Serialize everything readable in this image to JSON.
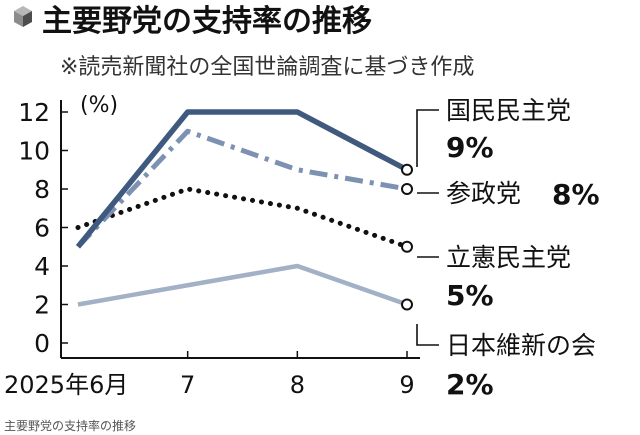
{
  "header": {
    "title": "主要野党の支持率の推移",
    "subtitle": "※読売新聞社の全国世論調査に基づき作成"
  },
  "caption": "主要野党の支持率の推移",
  "colors": {
    "navy": "#3f5a7e",
    "steel": "#7d92b2",
    "black": "#111111",
    "light": "#a3b1c6"
  },
  "chart_data": {
    "type": "line",
    "title": "主要野党の支持率の推移",
    "subtitle": "※読売新聞社の全国世論調査に基づき作成",
    "unit_label": "(%)",
    "categories": [
      "2025年6月",
      "7",
      "8",
      "9"
    ],
    "ylim": [
      0,
      12
    ],
    "yticks": [
      "0",
      "2",
      "4",
      "6",
      "8",
      "10",
      "12"
    ],
    "grid": false,
    "legend_placement": "right (labels at line ends)",
    "series": [
      {
        "name": "国民民主党",
        "label_value": "9%",
        "values": [
          5,
          12,
          12,
          9
        ],
        "color": "#3f5a7e",
        "style": "solid-thick"
      },
      {
        "name": "参政党",
        "label_value": "8%",
        "values": [
          5,
          11,
          9,
          8
        ],
        "color": "#7d92b2",
        "style": "dash-dot"
      },
      {
        "name": "立憲民主党",
        "label_value": "5%",
        "values": [
          6,
          8,
          7,
          5
        ],
        "color": "#111111",
        "style": "dotted"
      },
      {
        "name": "日本維新の会",
        "label_value": "2%",
        "values": [
          2,
          3,
          4,
          2
        ],
        "color": "#a3b1c6",
        "style": "solid"
      }
    ]
  }
}
